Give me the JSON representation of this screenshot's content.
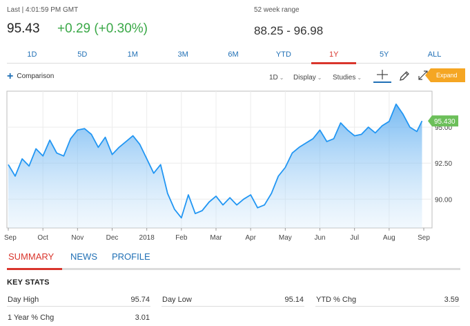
{
  "quote": {
    "last_time": "Last | 4:01:59 PM GMT",
    "last_price": "95.43",
    "change": "+0.29 (+0.30%)",
    "range_label": "52 week range",
    "range_value": "88.25 - 96.98"
  },
  "range_tabs": [
    {
      "label": "1D"
    },
    {
      "label": "5D"
    },
    {
      "label": "1M"
    },
    {
      "label": "3M"
    },
    {
      "label": "6M"
    },
    {
      "label": "YTD"
    },
    {
      "label": "1Y",
      "active": true
    },
    {
      "label": "5Y"
    },
    {
      "label": "ALL"
    }
  ],
  "toolbar": {
    "comparison_label": "Comparison",
    "interval_label": "1D",
    "display_label": "Display",
    "studies_label": "Studies",
    "expand_label": "Expand"
  },
  "colors": {
    "up": "#3aa847",
    "link": "#1f6fb5",
    "active": "#d9352c",
    "line": "#2196f3",
    "expand": "#f5a623",
    "last_badge": "#6cbf5a"
  },
  "chart_data": {
    "type": "area",
    "x_tick_labels": [
      "Sep",
      "Oct",
      "Nov",
      "Dec",
      "2018",
      "Feb",
      "Mar",
      "Apr",
      "May",
      "Jun",
      "Jul",
      "Aug",
      "Sep"
    ],
    "y_tick_labels": [
      "95.00",
      "92.50",
      "90.00"
    ],
    "ylim": [
      88.0,
      97.5
    ],
    "last_value_label": "95.430",
    "grid": true,
    "series": [
      {
        "x": [
          0,
          0.2,
          0.4,
          0.6,
          0.8,
          1,
          1.2,
          1.4,
          1.6,
          1.8,
          2,
          2.2,
          2.4,
          2.6,
          2.8,
          3,
          3.2,
          3.4,
          3.6,
          3.8,
          4,
          4.2,
          4.4,
          4.6,
          4.8,
          5,
          5.2,
          5.4,
          5.6,
          5.8,
          6,
          6.2,
          6.4,
          6.6,
          6.8,
          7,
          7.2,
          7.4,
          7.6,
          7.8,
          8,
          8.2,
          8.4,
          8.6,
          8.8,
          9,
          9.2,
          9.4,
          9.6,
          9.8,
          10,
          10.2,
          10.4,
          10.6,
          10.8,
          11,
          11.2,
          11.4,
          11.6,
          11.8,
          11.95
        ],
        "values": [
          92.4,
          91.6,
          92.8,
          92.3,
          93.5,
          93.0,
          94.1,
          93.2,
          93.0,
          94.2,
          94.8,
          94.9,
          94.5,
          93.6,
          94.3,
          93.1,
          93.6,
          94.0,
          94.4,
          93.8,
          92.8,
          91.8,
          92.4,
          90.4,
          89.3,
          88.7,
          90.3,
          89.0,
          89.2,
          89.8,
          90.2,
          89.6,
          90.1,
          89.6,
          90.0,
          90.3,
          89.4,
          89.6,
          90.4,
          91.6,
          92.2,
          93.2,
          93.6,
          93.9,
          94.2,
          94.8,
          94.0,
          94.2,
          95.3,
          94.8,
          94.4,
          94.5,
          95.0,
          94.6,
          95.1,
          95.4,
          96.6,
          95.9,
          95.0,
          94.7,
          95.43
        ]
      }
    ]
  },
  "bottom_tabs": [
    {
      "label": "SUMMARY",
      "active": true
    },
    {
      "label": "NEWS"
    },
    {
      "label": "PROFILE"
    }
  ],
  "key_stats": {
    "title": "KEY STATS",
    "items": [
      {
        "label": "Day High",
        "value": "95.74"
      },
      {
        "label": "Day Low",
        "value": "95.14"
      },
      {
        "label": "YTD % Chg",
        "value": "3.59"
      },
      {
        "label": "1 Year % Chg",
        "value": "3.01"
      }
    ]
  }
}
